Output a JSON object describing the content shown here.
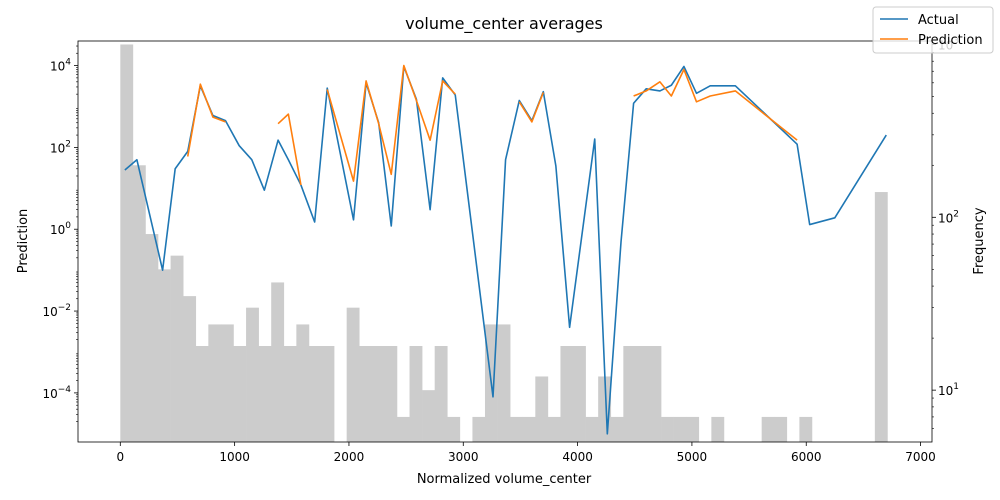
{
  "chart_data": {
    "type": "line",
    "title": "volume_center averages",
    "xlabel": "Normalized volume_center",
    "ylabel": "Prediction",
    "y2label": "Frequency",
    "xlim": [
      -370,
      7100
    ],
    "ylim_log": [
      -5.2,
      4.6
    ],
    "y2lim_log": [
      0.7,
      3.02
    ],
    "xticks": [
      {
        "v": 0,
        "label": "0"
      },
      {
        "v": 1000,
        "label": "1000"
      },
      {
        "v": 2000,
        "label": "2000"
      },
      {
        "v": 3000,
        "label": "3000"
      },
      {
        "v": 4000,
        "label": "4000"
      },
      {
        "v": 5000,
        "label": "5000"
      },
      {
        "v": 6000,
        "label": "6000"
      },
      {
        "v": 7000,
        "label": "7000"
      }
    ],
    "yticks": [
      {
        "e": 4,
        "base": "10",
        "exp": "4"
      },
      {
        "e": 2,
        "base": "10",
        "exp": "2"
      },
      {
        "e": 0,
        "base": "10",
        "exp": "0"
      },
      {
        "e": -2,
        "base": "10",
        "exp": "−2"
      },
      {
        "e": -4,
        "base": "10",
        "exp": "−4"
      }
    ],
    "y2ticks": [
      {
        "e": 3,
        "base": "10",
        "exp": "3"
      },
      {
        "e": 2,
        "base": "10",
        "exp": "2"
      },
      {
        "e": 1,
        "base": "10",
        "exp": "1"
      }
    ],
    "legend": {
      "placement": "top-right"
    },
    "series": [
      {
        "name": "Actual",
        "color": "#1f77b4",
        "points": [
          [
            40,
            28
          ],
          [
            145,
            50
          ],
          [
            370,
            0.1
          ],
          [
            480,
            30
          ],
          [
            590,
            80
          ],
          [
            700,
            3200
          ],
          [
            810,
            600
          ],
          [
            920,
            450
          ],
          [
            1040,
            110
          ],
          [
            1150,
            50
          ],
          [
            1260,
            9
          ],
          [
            1380,
            150
          ],
          [
            1470,
            50
          ],
          [
            1580,
            12
          ],
          [
            1700,
            1.5
          ],
          [
            1810,
            2800
          ],
          [
            2040,
            1.7
          ],
          [
            2150,
            3800
          ],
          [
            2260,
            400
          ],
          [
            2370,
            1.2
          ],
          [
            2480,
            9500
          ],
          [
            2590,
            1500
          ],
          [
            2710,
            3
          ],
          [
            2820,
            5000
          ],
          [
            2930,
            1900
          ],
          [
            3260,
            8e-05
          ],
          [
            3370,
            50
          ],
          [
            3490,
            1400
          ],
          [
            3600,
            450
          ],
          [
            3700,
            2300
          ],
          [
            3810,
            35
          ],
          [
            3930,
            0.004
          ],
          [
            4150,
            160
          ],
          [
            4260,
            1e-05
          ],
          [
            4380,
            0.5
          ],
          [
            4490,
            1200
          ],
          [
            4600,
            2700
          ],
          [
            4720,
            2400
          ],
          [
            4820,
            3300
          ],
          [
            4930,
            9500
          ],
          [
            5040,
            2100
          ],
          [
            5160,
            3200
          ],
          [
            5380,
            3200
          ],
          [
            5920,
            120
          ],
          [
            6030,
            1.3
          ],
          [
            6250,
            1.9
          ],
          [
            6700,
            200
          ]
        ]
      },
      {
        "name": "Prediction",
        "color": "#ff7f0e",
        "segments": [
          [
            [
              590,
              60
            ],
            [
              700,
              3500
            ],
            [
              810,
              550
            ],
            [
              920,
              420
            ]
          ],
          [
            [
              1380,
              380
            ],
            [
              1470,
              650
            ],
            [
              1580,
              12
            ]
          ],
          [
            [
              1810,
              2600
            ],
            [
              2040,
              15
            ],
            [
              2150,
              4200
            ],
            [
              2260,
              380
            ],
            [
              2370,
              22
            ],
            [
              2480,
              10000
            ],
            [
              2590,
              1400
            ],
            [
              2710,
              150
            ],
            [
              2820,
              4200
            ],
            [
              2930,
              2000
            ]
          ],
          [
            [
              3490,
              1300
            ],
            [
              3600,
              420
            ],
            [
              3700,
              2200
            ]
          ],
          [
            [
              4490,
              1800
            ],
            [
              4600,
              2400
            ],
            [
              4720,
              4000
            ],
            [
              4820,
              1800
            ],
            [
              4930,
              8000
            ],
            [
              5040,
              1300
            ],
            [
              5160,
              1800
            ],
            [
              5380,
              2400
            ],
            [
              5920,
              150
            ]
          ]
        ]
      }
    ],
    "histogram": {
      "color": "#cccccc",
      "bin_width": 110,
      "left_edges": [
        0,
        110,
        220,
        330,
        440,
        550,
        660,
        770,
        880,
        990,
        1100,
        1210,
        1320,
        1430,
        1540,
        1650,
        1760,
        1870,
        1980,
        2090,
        2200,
        2310,
        2420,
        2530,
        2640,
        2750,
        2860,
        2970,
        3080,
        3190,
        3300,
        3410,
        3520,
        3630,
        3740,
        3850,
        3960,
        4070,
        4180,
        4290,
        4400,
        4510,
        4620,
        4730,
        4840,
        4950,
        5060,
        5170,
        5280,
        5390,
        5500,
        5610,
        5720,
        5830,
        5940,
        6050,
        6160,
        6270,
        6380,
        6490,
        6600
      ],
      "frequencies": [
        1000,
        200,
        80,
        50,
        60,
        35,
        18,
        24,
        24,
        18,
        30,
        18,
        42,
        18,
        24,
        18,
        18,
        0,
        30,
        18,
        18,
        18,
        7,
        18,
        10,
        18,
        7,
        0,
        7,
        24,
        24,
        7,
        7,
        12,
        7,
        18,
        18,
        7,
        12,
        7,
        18,
        18,
        18,
        7,
        7,
        7,
        0,
        7,
        0,
        0,
        0,
        7,
        7,
        0,
        7,
        0,
        0,
        0,
        0,
        0,
        140
      ]
    }
  }
}
